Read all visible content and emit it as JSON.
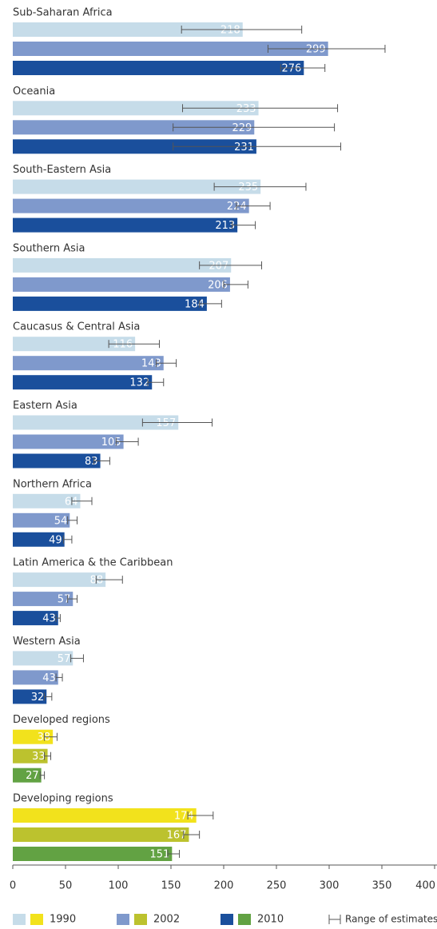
{
  "chart_data": {
    "type": "bar",
    "orientation": "horizontal",
    "categories": [
      "Sub-Saharan Africa",
      "Oceania",
      "South-Eastern Asia",
      "Southern Asia",
      "Caucasus & Central Asia",
      "Eastern Asia",
      "Northern Africa",
      "Latin America & the Caribbean",
      "Western Asia",
      "Developed regions",
      "Developing regions"
    ],
    "series": [
      {
        "name": "1990",
        "colors": [
          "#c6dce9",
          "#c6dce9",
          "#c6dce9",
          "#c6dce9",
          "#c6dce9",
          "#c6dce9",
          "#c6dce9",
          "#c6dce9",
          "#c6dce9",
          "#f2e21c",
          "#f2e21c"
        ],
        "values": [
          218,
          233,
          235,
          207,
          116,
          157,
          64,
          88,
          57,
          38,
          174
        ],
        "low": [
          160,
          161,
          191,
          177,
          91,
          123,
          56,
          79,
          55,
          30,
          166
        ],
        "high": [
          274,
          308,
          278,
          236,
          139,
          189,
          75,
          104,
          67,
          42,
          190
        ]
      },
      {
        "name": "2002",
        "colors": [
          "#7f99cc",
          "#7f99cc",
          "#7f99cc",
          "#7f99cc",
          "#7f99cc",
          "#7f99cc",
          "#7f99cc",
          "#7f99cc",
          "#7f99cc",
          "#bcc22e",
          "#bcc22e"
        ],
        "values": [
          299,
          229,
          224,
          206,
          143,
          105,
          54,
          57,
          43,
          33,
          167
        ],
        "low": [
          242,
          152,
          212,
          200,
          136,
          98,
          52,
          52,
          41,
          30,
          162
        ],
        "high": [
          353,
          305,
          244,
          223,
          155,
          119,
          61,
          61,
          47,
          36,
          177
        ]
      },
      {
        "name": "2010",
        "colors": [
          "#1a4f9c",
          "#1a4f9c",
          "#1a4f9c",
          "#1a4f9c",
          "#1a4f9c",
          "#1a4f9c",
          "#1a4f9c",
          "#1a4f9c",
          "#1a4f9c",
          "#62a243",
          "#62a243"
        ],
        "values": [
          276,
          231,
          213,
          184,
          132,
          83,
          49,
          43,
          32,
          27,
          151
        ],
        "low": [
          254,
          152,
          208,
          177,
          128,
          77,
          48,
          41,
          30,
          26,
          147
        ],
        "high": [
          296,
          311,
          230,
          198,
          143,
          92,
          56,
          45,
          37,
          30,
          158
        ]
      }
    ],
    "xlim": [
      0,
      400
    ],
    "xticks": [
      0,
      50,
      100,
      150,
      200,
      250,
      300,
      350,
      400
    ],
    "range_label": "Range of estimates"
  }
}
